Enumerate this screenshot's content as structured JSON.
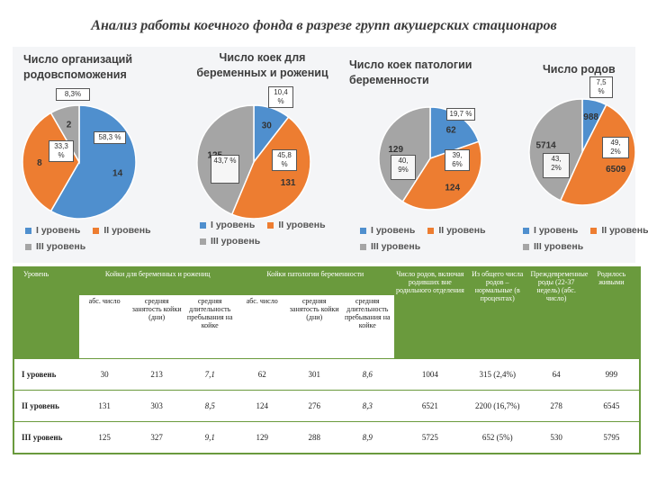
{
  "title": "Анализ работы коечного фонда в разрезе групп акушерских стационаров",
  "colors": {
    "level1": "#4f8fce",
    "level2": "#ed7d31",
    "level3": "#a5a5a5",
    "tableGreen": "#6a9a3d"
  },
  "legend": {
    "level1": "I уровень",
    "level2": "II уровень",
    "level3": "III уровень"
  },
  "chart_data": [
    {
      "type": "pie",
      "title": "Число организаций родовспоможения",
      "categories": [
        "I уровень",
        "II уровень",
        "III уровень"
      ],
      "values": [
        14,
        8,
        2
      ],
      "data_labels": [
        "14",
        "8",
        "2"
      ],
      "callouts": [
        "58,3 %",
        "33,3 %",
        "8,3%"
      ]
    },
    {
      "type": "pie",
      "title": "Число коек для беременных и рожениц",
      "categories": [
        "I уровень",
        "II уровень",
        "III уровень"
      ],
      "values": [
        30,
        131,
        125
      ],
      "data_labels": [
        "30",
        "131",
        "125"
      ],
      "callouts": [
        "10,4 %",
        "45,8 %",
        "43,7 %"
      ]
    },
    {
      "type": "pie",
      "title": "Число коек патологии беременности",
      "categories": [
        "I уровень",
        "II уровень",
        "III уровень"
      ],
      "values": [
        62,
        124,
        129
      ],
      "data_labels": [
        "62",
        "124",
        "129"
      ],
      "callouts": [
        "19,7 %",
        "39, 6%",
        "40, 9%"
      ]
    },
    {
      "type": "pie",
      "title": "Число родов",
      "categories": [
        "I уровень",
        "II уровень",
        "III уровень"
      ],
      "values": [
        988,
        6509,
        5714
      ],
      "data_labels": [
        "988",
        "6509",
        "5714"
      ],
      "callouts": [
        "7,5 %",
        "49, 2%",
        "43, 2%"
      ]
    }
  ],
  "table": {
    "col_level": "Уровень",
    "group_beds": "Койки для беременных и рожениц",
    "group_pathology": "Койки патологии беременности",
    "col_births": "Число родов, включая родивших вне родильного отделения",
    "col_normal": "Из общего числа родов – нормальные (в процентах)",
    "col_preterm": "Преждевременные роды (22-37 недель) (абс. число)",
    "col_alive": "Родилось живыми",
    "sub_abs": "абс. число",
    "sub_occupancy": "средняя занятость койки (дни)",
    "sub_stay": "средняя длительность пребывания на койке",
    "rows": [
      {
        "level": "I уровень",
        "beds_abs": "30",
        "beds_occ": "213",
        "beds_stay": "7,1",
        "path_abs": "62",
        "path_occ": "301",
        "path_stay": "8,6",
        "births": "1004",
        "normal": "315 (2,4%)",
        "preterm": "64",
        "alive": "999"
      },
      {
        "level": "II уровень",
        "beds_abs": "131",
        "beds_occ": "303",
        "beds_stay": "8,5",
        "path_abs": "124",
        "path_occ": "276",
        "path_stay": "8,3",
        "births": "6521",
        "normal": "2200 (16,7%)",
        "preterm": "278",
        "alive": "6545"
      },
      {
        "level": "III уровень",
        "beds_abs": "125",
        "beds_occ": "327",
        "beds_stay": "9,1",
        "path_abs": "129",
        "path_occ": "288",
        "path_stay": "8,9",
        "births": "5725",
        "normal": "652 (5%)",
        "preterm": "530",
        "alive": "5795"
      }
    ]
  }
}
